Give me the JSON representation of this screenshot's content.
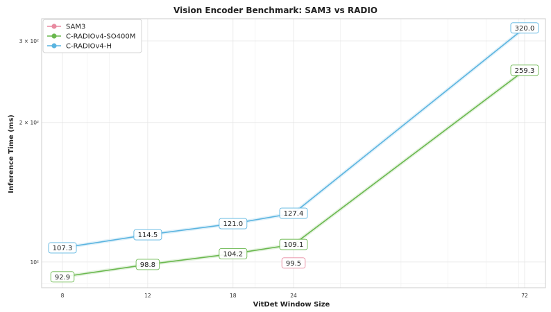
{
  "chart_data": {
    "type": "line",
    "title": "Vision Encoder Benchmark: SAM3 vs RADIO",
    "xlabel": "VitDet Window Size",
    "ylabel": "Inference Time (ms)",
    "x_scale": "log",
    "y_scale": "log",
    "x": [
      8,
      12,
      18,
      24,
      72
    ],
    "x_tick_labels": [
      "8",
      "12",
      "18",
      "24",
      "72"
    ],
    "ylim": [
      88,
      335
    ],
    "y_ticks": [
      {
        "value": 100,
        "label": "10²"
      },
      {
        "value": 200,
        "label": "2 × 10²"
      },
      {
        "value": 300,
        "label": "3 × 10²"
      }
    ],
    "grid": true,
    "legend_position": "top-left",
    "series": [
      {
        "name": "SAM3",
        "color": "#e88aa0",
        "points": [
          {
            "x": 24,
            "y": 99.5,
            "label": "99.5"
          }
        ]
      },
      {
        "name": "C-RADIOv4-SO400M",
        "color": "#6ab84e",
        "points": [
          {
            "x": 8,
            "y": 92.9,
            "label": "92.9"
          },
          {
            "x": 12,
            "y": 98.8,
            "label": "98.8"
          },
          {
            "x": 18,
            "y": 104.2,
            "label": "104.2"
          },
          {
            "x": 24,
            "y": 109.1,
            "label": "109.1"
          },
          {
            "x": 72,
            "y": 259.3,
            "label": "259.3"
          }
        ]
      },
      {
        "name": "C-RADIOv4-H",
        "color": "#5ab4e0",
        "points": [
          {
            "x": 8,
            "y": 107.3,
            "label": "107.3"
          },
          {
            "x": 12,
            "y": 114.5,
            "label": "114.5"
          },
          {
            "x": 18,
            "y": 121.0,
            "label": "121.0"
          },
          {
            "x": 24,
            "y": 127.4,
            "label": "127.4"
          },
          {
            "x": 72,
            "y": 320.0,
            "label": "320.0"
          }
        ]
      }
    ]
  }
}
